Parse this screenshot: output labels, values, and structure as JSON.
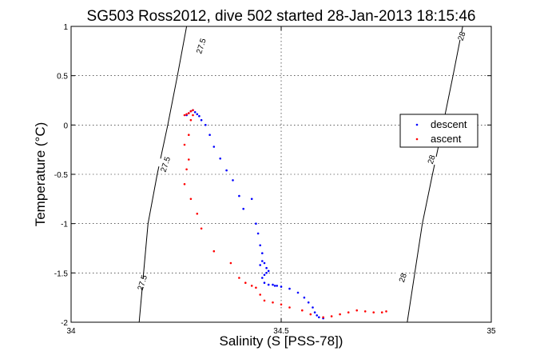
{
  "chart_data": {
    "type": "scatter",
    "title": "SG503 Ross2012, dive 502 started 28-Jan-2013 18:15:46",
    "xlabel": "Salinity (S [PSS-78])",
    "ylabel": "Temperature (°C)",
    "xlim": [
      34,
      35
    ],
    "ylim": [
      -2,
      1
    ],
    "grid": true,
    "legend": "right",
    "x_ticks": [
      "34",
      "34.5",
      "35"
    ],
    "y_ticks": [
      "1",
      "0.5",
      "0",
      "-0.5",
      "-1",
      "-1.5",
      "-2"
    ],
    "series": [
      {
        "name": "descent",
        "color": "#0000ff",
        "x": [
          34.275,
          34.28,
          34.285,
          34.29,
          34.295,
          34.3,
          34.305,
          34.31,
          34.32,
          34.33,
          34.34,
          34.355,
          34.37,
          34.385,
          34.4,
          34.41,
          34.43,
          34.44,
          34.445,
          34.45,
          34.455,
          34.46,
          34.465,
          34.47,
          34.465,
          34.46,
          34.455,
          34.45,
          34.455,
          34.46,
          34.47,
          34.48,
          34.485,
          34.49,
          34.5,
          34.52,
          34.54,
          34.555,
          34.565,
          34.575,
          34.58,
          34.585,
          34.59,
          34.6
        ],
        "y": [
          0.1,
          0.12,
          0.14,
          0.15,
          0.13,
          0.11,
          0.09,
          0.05,
          0.0,
          -0.1,
          -0.22,
          -0.34,
          -0.46,
          -0.56,
          -0.72,
          -0.85,
          -0.75,
          -1.0,
          -1.1,
          -1.22,
          -1.3,
          -1.4,
          -1.45,
          -1.48,
          -1.5,
          -1.52,
          -1.38,
          -1.42,
          -1.55,
          -1.6,
          -1.62,
          -1.62,
          -1.63,
          -1.63,
          -1.64,
          -1.66,
          -1.7,
          -1.75,
          -1.8,
          -1.85,
          -1.9,
          -1.93,
          -1.95,
          -1.96
        ]
      },
      {
        "name": "ascent",
        "color": "#ff0000",
        "x": [
          34.27,
          34.275,
          34.28,
          34.285,
          34.29,
          34.29,
          34.285,
          34.28,
          34.27,
          34.28,
          34.275,
          34.27,
          34.285,
          34.3,
          34.31,
          34.34,
          34.38,
          34.4,
          34.415,
          34.43,
          34.44,
          34.45,
          34.46,
          34.48,
          34.5,
          34.52,
          34.55,
          34.57,
          34.6,
          34.62,
          34.64,
          34.66,
          34.68,
          34.7,
          34.72,
          34.74,
          34.75
        ],
        "y": [
          0.1,
          0.11,
          0.12,
          0.14,
          0.15,
          0.1,
          0.05,
          -0.1,
          -0.2,
          -0.35,
          -0.45,
          -0.6,
          -0.75,
          -0.9,
          -1.05,
          -1.28,
          -1.4,
          -1.55,
          -1.6,
          -1.63,
          -1.65,
          -1.72,
          -1.78,
          -1.8,
          -1.82,
          -1.85,
          -1.88,
          -1.92,
          -1.95,
          -1.94,
          -1.92,
          -1.9,
          -1.88,
          -1.89,
          -1.9,
          -1.9,
          -1.89
        ]
      }
    ],
    "contours": [
      {
        "label": "27.5",
        "x": [
          34.275,
          34.253,
          34.23,
          34.205,
          34.183,
          34.162
        ],
        "y": [
          1,
          0.5,
          0,
          -0.5,
          -1,
          -2
        ],
        "label_positions": [
          {
            "x": 34.31,
            "y": 0.8
          },
          {
            "x": 34.225,
            "y": -0.4
          },
          {
            "x": 34.17,
            "y": -1.6
          }
        ]
      },
      {
        "label": "28",
        "x": [
          34.932,
          34.909,
          34.885,
          34.86,
          34.836,
          34.8
        ],
        "y": [
          1,
          0.5,
          0,
          -0.5,
          -1,
          -2
        ],
        "label_positions": [
          {
            "x": 34.93,
            "y": 0.9
          },
          {
            "x": 34.858,
            "y": -0.35
          },
          {
            "x": 34.79,
            "y": -1.55
          }
        ]
      }
    ]
  }
}
